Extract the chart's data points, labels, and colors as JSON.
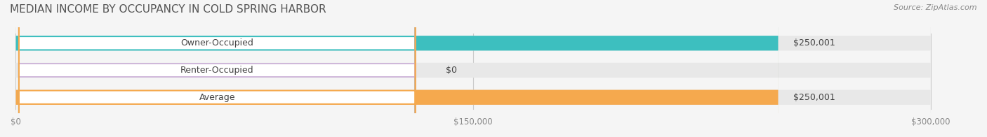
{
  "title": "MEDIAN INCOME BY OCCUPANCY IN COLD SPRING HARBOR",
  "source": "Source: ZipAtlas.com",
  "categories": [
    "Owner-Occupied",
    "Renter-Occupied",
    "Average"
  ],
  "values": [
    250001,
    0,
    250001
  ],
  "bar_colors": [
    "#3dbfbf",
    "#c9aed6",
    "#f5a94e"
  ],
  "label_colors": [
    "#3dbfbf",
    "#c9aed6",
    "#f5a94e"
  ],
  "value_labels": [
    "$250,001",
    "$0",
    "$250,001"
  ],
  "xlim": [
    0,
    300000
  ],
  "xticks": [
    0,
    150000,
    300000
  ],
  "xtick_labels": [
    "$0",
    "$150,000",
    "$300,000"
  ],
  "bar_height": 0.55,
  "background_color": "#f5f5f5",
  "bar_bg_color": "#e8e8e8",
  "title_fontsize": 11,
  "label_fontsize": 9,
  "tick_fontsize": 8.5,
  "source_fontsize": 8
}
